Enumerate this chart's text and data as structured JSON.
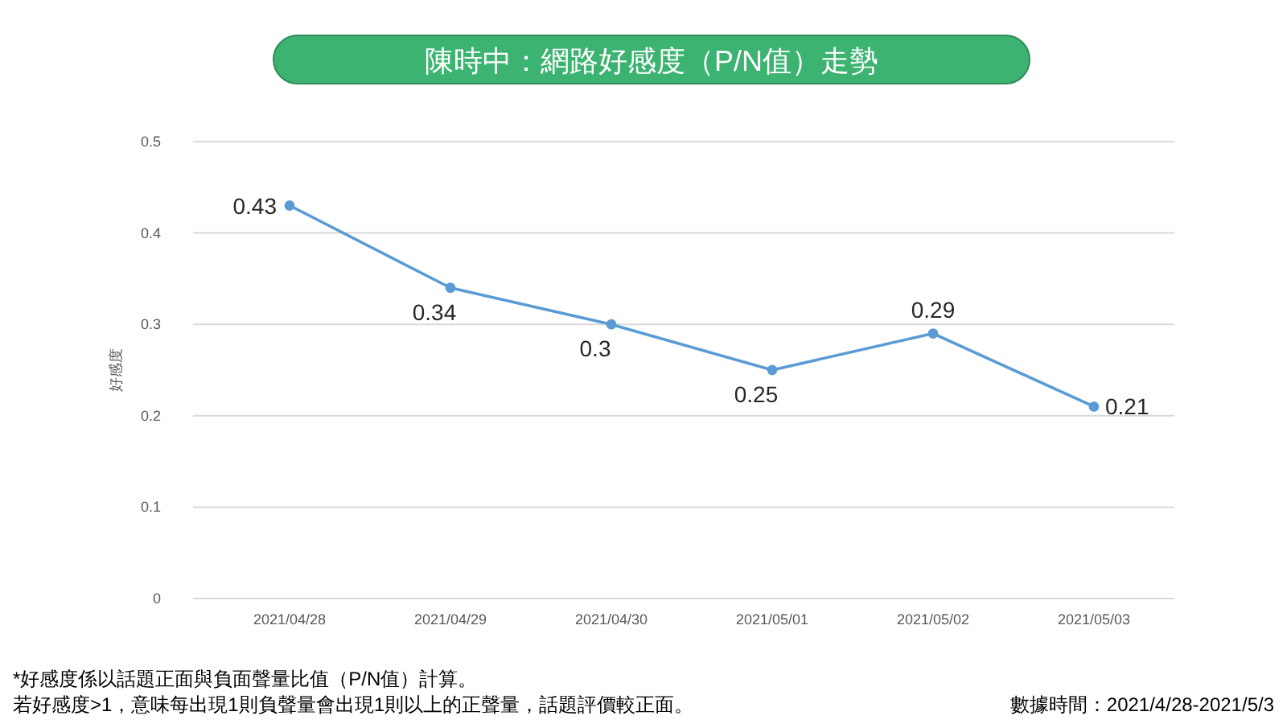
{
  "chart_data": {
    "type": "line",
    "title": "陳時中：網路好感度（P/N值）走勢",
    "ylabel": "好感度",
    "categories": [
      "2021/04/28",
      "2021/04/29",
      "2021/04/30",
      "2021/05/01",
      "2021/05/02",
      "2021/05/03"
    ],
    "series": [
      {
        "color": "#5b9bd5",
        "values": [
          0.43,
          0.34,
          0.3,
          0.25,
          0.29,
          0.21
        ]
      }
    ],
    "ylim": [
      0,
      0.5
    ],
    "yticks": [
      0,
      0.1,
      0.2,
      0.3,
      0.4,
      0.5
    ],
    "grid": "y",
    "marker": "circle",
    "line_style": "solid",
    "data_labels": true,
    "annotations": [
      "*好感度係以話題正面與負面聲量比值（P/N值）計算。",
      "若好感度>1，意味每出現1則負聲量會出現1則以上的正聲量，話題評價較正面。",
      "數據時間：2021/4/28-2021/5/3"
    ]
  }
}
